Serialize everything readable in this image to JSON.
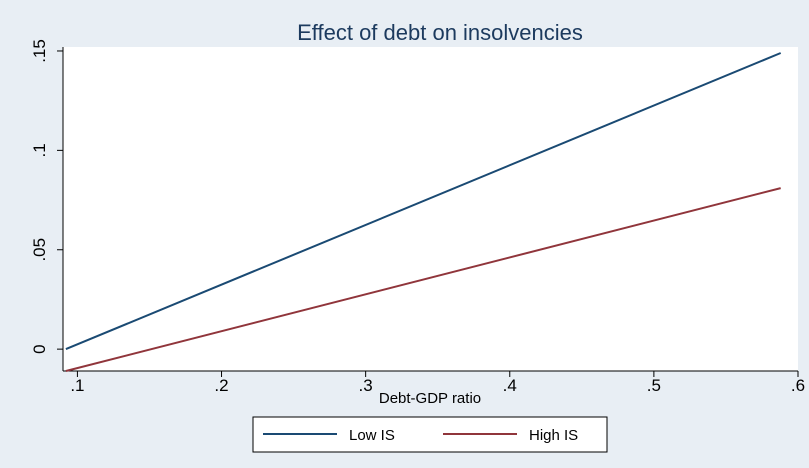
{
  "chart_data": {
    "type": "line",
    "title": "Effect of debt on insolvencies",
    "xlabel": "Debt-GDP ratio",
    "ylabel": "",
    "xlim": [
      0.09,
      0.6
    ],
    "ylim": [
      -0.011,
      0.152
    ],
    "x_ticks": [
      0.1,
      0.2,
      0.3,
      0.4,
      0.5,
      0.6
    ],
    "x_tick_labels": [
      ".1",
      ".2",
      ".3",
      ".4",
      ".5",
      ".6"
    ],
    "y_ticks": [
      0,
      0.05,
      0.1,
      0.15
    ],
    "y_tick_labels": [
      "0",
      ".05",
      ".1",
      ".15"
    ],
    "grid": false,
    "legend_position": "bottom",
    "series": [
      {
        "name": "Low IS",
        "color": "#1a4a73",
        "x": [
          0.092,
          0.588
        ],
        "y": [
          0.0,
          0.149
        ]
      },
      {
        "name": "High IS",
        "color": "#90353b",
        "x": [
          0.092,
          0.588
        ],
        "y": [
          -0.011,
          0.081
        ]
      }
    ],
    "colors": {
      "background": "#e8eef4",
      "plot_background": "#ffffff",
      "title": "#1c3a5e"
    }
  }
}
